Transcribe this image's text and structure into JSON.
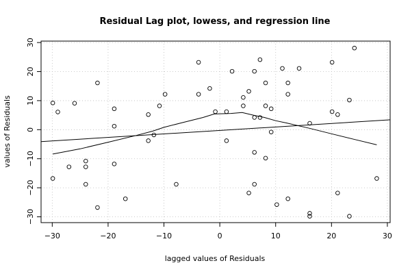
{
  "chart_data": {
    "type": "scatter",
    "title": "Residual Lag plot, lowess, and regression line",
    "xlabel": "lagged values of Residuals",
    "ylabel": "values of Residuals",
    "xlim": [
      -32,
      30.5
    ],
    "ylim": [
      -32,
      30.5
    ],
    "x_ticks": [
      -30,
      -20,
      -10,
      0,
      10,
      20,
      30
    ],
    "y_ticks": [
      -30,
      -20,
      -10,
      0,
      10,
      20,
      30
    ],
    "x_tick_labels": [
      "−30",
      "−20",
      "−10",
      "0",
      "10",
      "20",
      "30"
    ],
    "y_tick_labels": [
      "−30",
      "−20",
      "−10",
      "0",
      "10",
      "20",
      "30"
    ],
    "grid": true,
    "points": [
      [
        -29.9,
        9.2
      ],
      [
        -29.0,
        6.1
      ],
      [
        -29.9,
        -16.8
      ],
      [
        -27.0,
        -12.8
      ],
      [
        -26.0,
        9.1
      ],
      [
        -24.0,
        -10.8
      ],
      [
        -24.0,
        -12.8
      ],
      [
        -24.0,
        -18.8
      ],
      [
        -21.9,
        16.1
      ],
      [
        -21.9,
        -26.8
      ],
      [
        -18.9,
        7.2
      ],
      [
        -18.9,
        1.2
      ],
      [
        -18.9,
        -11.8
      ],
      [
        -16.9,
        -23.8
      ],
      [
        -12.8,
        5.2
      ],
      [
        -12.8,
        -3.8
      ],
      [
        -11.8,
        -1.8
      ],
      [
        -10.8,
        8.2
      ],
      [
        -9.8,
        12.2
      ],
      [
        -7.8,
        -18.8
      ],
      [
        -3.8,
        23.2
      ],
      [
        -3.8,
        12.2
      ],
      [
        -1.8,
        14.2
      ],
      [
        -0.8,
        6.2
      ],
      [
        1.2,
        6.2
      ],
      [
        1.2,
        -3.8
      ],
      [
        2.2,
        20.1
      ],
      [
        4.2,
        11.1
      ],
      [
        4.2,
        8.2
      ],
      [
        5.2,
        13.2
      ],
      [
        5.2,
        -21.8
      ],
      [
        6.2,
        20.1
      ],
      [
        6.2,
        4.2
      ],
      [
        6.2,
        -7.8
      ],
      [
        6.2,
        -18.8
      ],
      [
        7.2,
        24.1
      ],
      [
        7.2,
        4.2
      ],
      [
        8.2,
        16.1
      ],
      [
        8.2,
        8.2
      ],
      [
        8.2,
        -9.8
      ],
      [
        9.2,
        7.2
      ],
      [
        9.2,
        -0.8
      ],
      [
        10.2,
        -25.8
      ],
      [
        11.2,
        21.1
      ],
      [
        12.2,
        16.1
      ],
      [
        12.2,
        12.2
      ],
      [
        12.2,
        -23.8
      ],
      [
        14.2,
        21.1
      ],
      [
        16.1,
        2.2
      ],
      [
        16.1,
        -28.8
      ],
      [
        16.1,
        -29.8
      ],
      [
        20.1,
        23.2
      ],
      [
        20.1,
        6.2
      ],
      [
        21.1,
        5.2
      ],
      [
        21.1,
        -21.8
      ],
      [
        23.2,
        10.2
      ],
      [
        23.2,
        -29.8
      ],
      [
        24.1,
        28.1
      ],
      [
        28.1,
        -16.8
      ]
    ],
    "regression_line": {
      "x": [
        -32,
        30.5
      ],
      "y": [
        -4.1,
        3.4
      ]
    },
    "lowess": {
      "x": [
        -29.9,
        -25,
        -20,
        -15,
        -12,
        -10,
        -7,
        -3,
        -1,
        2,
        4,
        6,
        8,
        10,
        12,
        16,
        20,
        24,
        28.1
      ],
      "y": [
        -8.4,
        -6.6,
        -4.3,
        -2.0,
        -0.5,
        0.8,
        2.3,
        4.2,
        5.4,
        5.6,
        5.9,
        5.0,
        4.2,
        3.1,
        2.3,
        0.5,
        -1.4,
        -3.3,
        -5.2
      ]
    }
  }
}
